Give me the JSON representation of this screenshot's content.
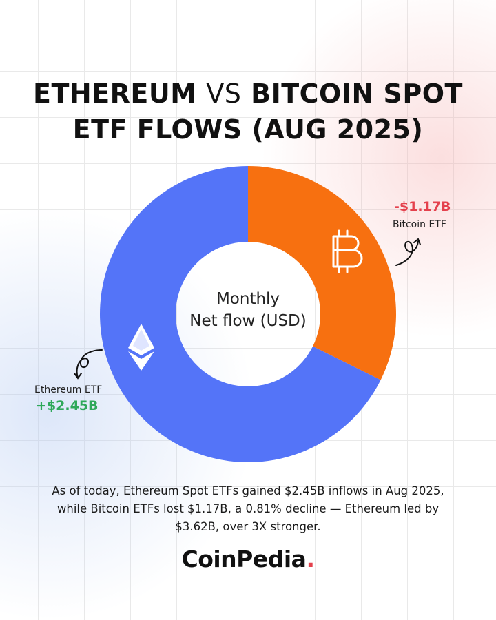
{
  "title": {
    "part1": "ETHEREUM",
    "part2": "VS",
    "part3": "BITCOIN SPOT",
    "line2": "ETF FLOWS (AUG 2025)"
  },
  "chart_data": {
    "type": "donut",
    "center_label_line1": "Monthly",
    "center_label_line2": "Net flow (USD)",
    "slices": [
      {
        "name": "Ethereum ETF",
        "value_label": "+$2.45B",
        "value": 2.45,
        "color": "#5474f8"
      },
      {
        "name": "Bitcoin ETF",
        "value_label": "-$1.17B",
        "value": -1.17,
        "color": "#f77010"
      }
    ]
  },
  "icons": {
    "bitcoin": "bitcoin-icon",
    "ethereum": "ethereum-icon",
    "btc_arrow": "curly-arrow-icon",
    "eth_arrow": "curly-arrow-icon"
  },
  "caption": {
    "line1": "As of today, Ethereum Spot ETFs gained $2.45B inflows in Aug 2025,",
    "line2": "while Bitcoin ETFs lost $1.17B, a 0.81% decline — Ethereum led by",
    "line3": "$3.62B, over 3X stronger."
  },
  "logo": {
    "text": "CoinPedia",
    "dot": "."
  }
}
